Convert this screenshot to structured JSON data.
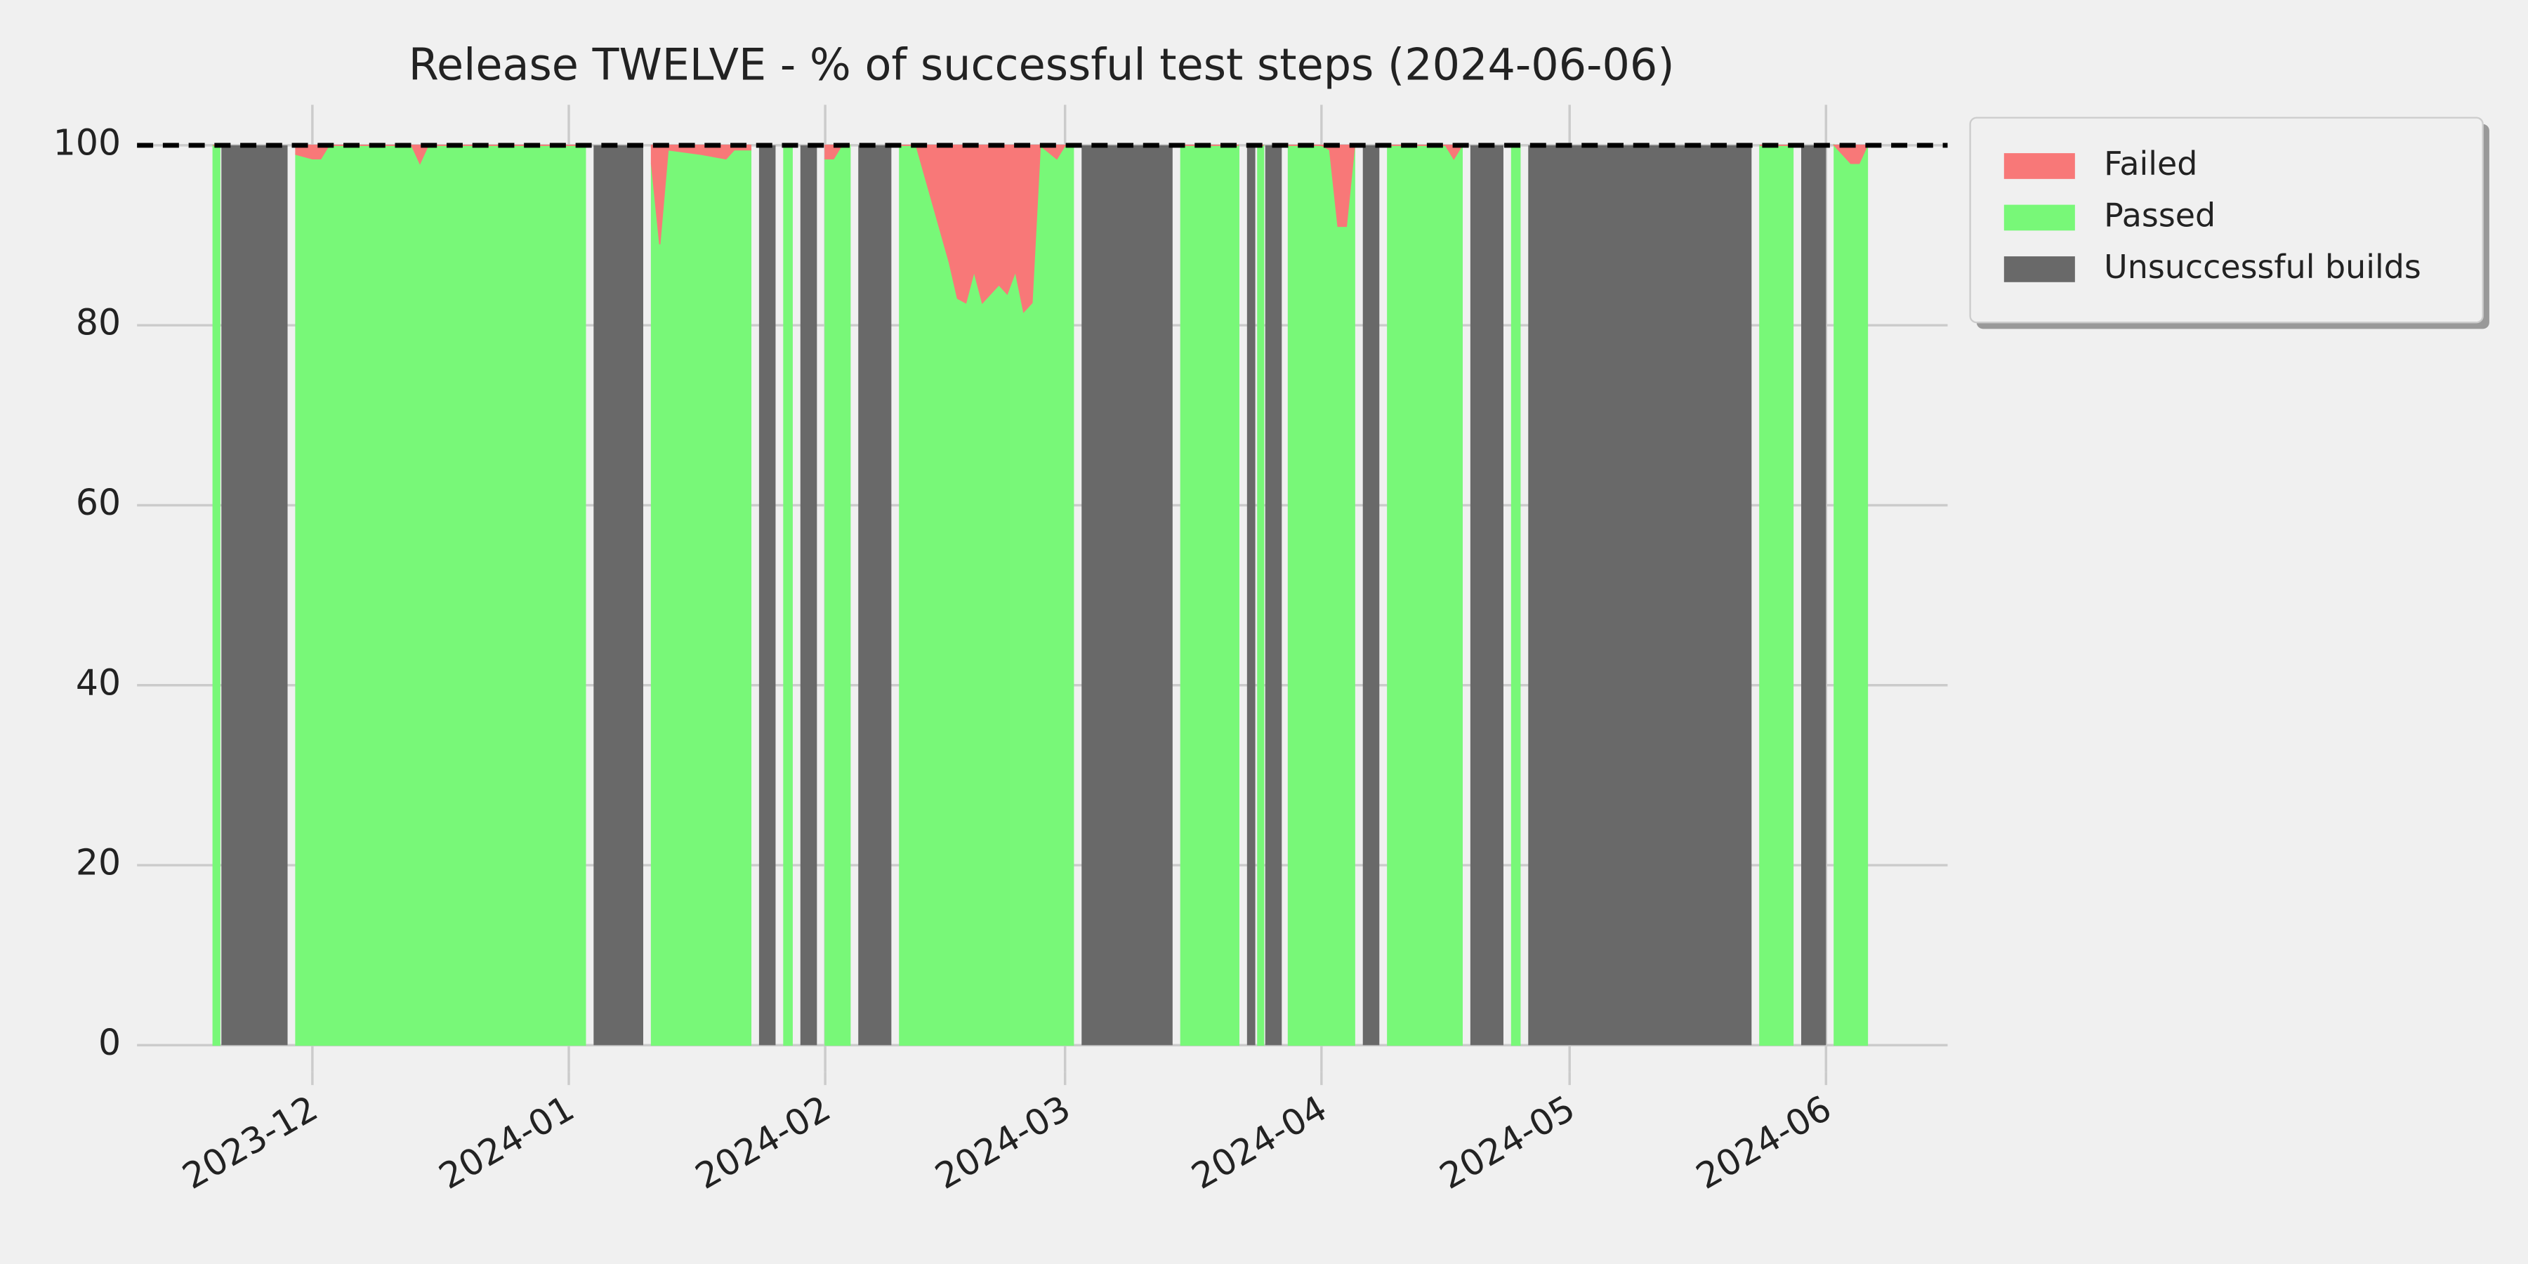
{
  "chart_data": {
    "type": "area",
    "title": "Release TWELVE - % of successful test steps (2024-06-06)",
    "x": [
      -12,
      -11.2,
      -11,
      -3,
      -2,
      0,
      1,
      2,
      12,
      13,
      14,
      33,
      34,
      40,
      41,
      42,
      43,
      47,
      50,
      51,
      53,
      54,
      56,
      57,
      58,
      59,
      61,
      62,
      63,
      64,
      65,
      66,
      70,
      71,
      73,
      77,
      78,
      79,
      80,
      81,
      83,
      84,
      85,
      86,
      87,
      88,
      90,
      91,
      92,
      93,
      104,
      105,
      112,
      113,
      114,
      114.3,
      115,
      115.2,
      117.2,
      118,
      122,
      123,
      124,
      125,
      126,
      127,
      129,
      130,
      137,
      138,
      139,
      140,
      144,
      145,
      146,
      147,
      174,
      175,
      179,
      180,
      183,
      184,
      186,
      187,
      188
    ],
    "series": [
      {
        "name": "Failed",
        "color": "#f87878",
        "stack": true,
        "values": [
          0,
          0,
          null,
          null,
          1,
          1.5,
          1.5,
          0,
          0,
          2,
          0,
          0,
          null,
          null,
          2,
          11,
          0.5,
          1,
          1.5,
          0.5,
          0.5,
          null,
          null,
          0,
          0,
          null,
          null,
          1.5,
          1.5,
          0,
          0,
          null,
          null,
          0,
          0,
          13,
          17,
          17.5,
          14,
          17.5,
          15.5,
          16.5,
          14,
          18.5,
          17.5,
          0,
          1.5,
          0,
          0,
          null,
          null,
          0,
          0,
          null,
          null,
          0,
          0,
          null,
          null,
          0,
          0,
          0.5,
          9,
          9,
          0,
          null,
          null,
          0,
          0,
          1.5,
          0,
          null,
          null,
          0,
          0,
          null,
          null,
          0,
          0,
          null,
          null,
          0,
          2,
          2,
          0
        ]
      },
      {
        "name": "Passed",
        "color": "#78f878",
        "stack": true,
        "values": [
          100,
          100,
          null,
          null,
          99,
          98.5,
          98.5,
          100,
          100,
          98,
          100,
          100,
          null,
          null,
          98,
          89,
          99.5,
          99,
          98.5,
          99.5,
          99.5,
          null,
          null,
          100,
          100,
          null,
          null,
          98.5,
          98.5,
          100,
          100,
          null,
          null,
          100,
          100,
          87,
          83,
          82.5,
          86,
          82.5,
          84.5,
          83.5,
          86,
          81.5,
          82.5,
          100,
          98.5,
          100,
          100,
          null,
          null,
          100,
          100,
          null,
          null,
          100,
          100,
          null,
          null,
          100,
          100,
          99.5,
          91,
          91,
          100,
          null,
          null,
          100,
          100,
          98.5,
          100,
          null,
          null,
          100,
          100,
          null,
          null,
          100,
          100,
          null,
          null,
          100,
          98,
          98,
          100
        ]
      },
      {
        "name": "Unsuccessful builds",
        "color": "#696969",
        "stack": false,
        "values": [
          null,
          null,
          100,
          100,
          null,
          null,
          null,
          null,
          null,
          null,
          null,
          null,
          100,
          100,
          null,
          null,
          null,
          null,
          null,
          null,
          null,
          100,
          100,
          null,
          null,
          100,
          100,
          null,
          null,
          null,
          null,
          100,
          100,
          null,
          null,
          null,
          null,
          null,
          null,
          null,
          null,
          null,
          null,
          null,
          null,
          null,
          null,
          null,
          null,
          100,
          100,
          null,
          null,
          100,
          100,
          null,
          null,
          100,
          100,
          null,
          null,
          null,
          null,
          null,
          null,
          100,
          100,
          null,
          null,
          null,
          null,
          100,
          100,
          null,
          null,
          100,
          100,
          null,
          null,
          100,
          100,
          null,
          null,
          null,
          null
        ]
      }
    ],
    "xlim": [
      -21.2,
      197.7
    ],
    "xticks": [
      {
        "value": 0,
        "label": "2023-12"
      },
      {
        "value": 31,
        "label": "2024-01"
      },
      {
        "value": 62,
        "label": "2024-02"
      },
      {
        "value": 91,
        "label": "2024-03"
      },
      {
        "value": 122,
        "label": "2024-04"
      },
      {
        "value": 152,
        "label": "2024-05"
      },
      {
        "value": 183,
        "label": "2024-06"
      }
    ],
    "ylim": [
      -3,
      104.5
    ],
    "yticks": [
      0,
      20,
      40,
      60,
      80,
      100
    ],
    "hline": 100,
    "grid": true,
    "legend": "outside-upper-right"
  }
}
